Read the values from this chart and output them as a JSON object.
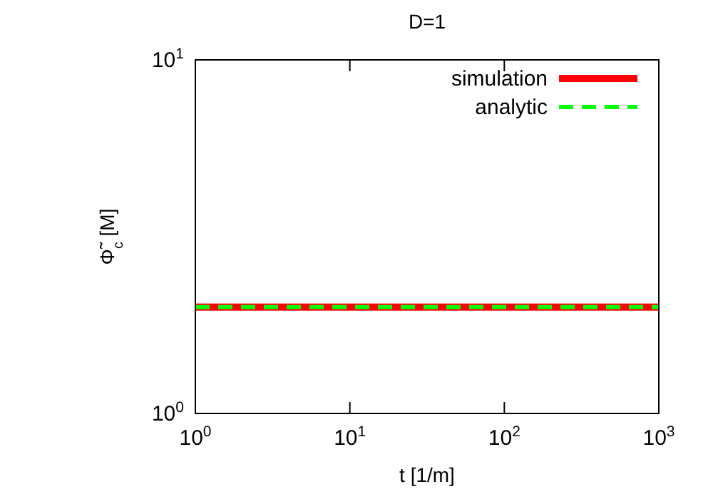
{
  "chart_data": {
    "type": "line",
    "title": "D=1",
    "xlabel": "t [1/m]",
    "ylabel": "Φ̃$_{c}$ [M]",
    "log": "xy",
    "xlim": [
      1,
      1000
    ],
    "ylim": [
      1,
      10
    ],
    "xticks": [
      {
        "value": 1,
        "label": "10$^{0}$"
      },
      {
        "value": 10,
        "label": "10$^{1}$"
      },
      {
        "value": 100,
        "label": "10$^{2}$"
      },
      {
        "value": 1000,
        "label": "10$^{3}$"
      }
    ],
    "yticks": [
      {
        "value": 1,
        "label": "10$^{0}$"
      },
      {
        "value": 10,
        "label": "10$^{1}$"
      }
    ],
    "legend": "top right",
    "x": [
      1,
      1000
    ],
    "series": [
      {
        "name": "simulation",
        "color": "#ff0000",
        "values": [
          2,
          2
        ],
        "line_style": "solid"
      },
      {
        "name": "analytic",
        "color": "#00ff00",
        "values": [
          2,
          2
        ],
        "line_style": "dashed"
      }
    ]
  }
}
